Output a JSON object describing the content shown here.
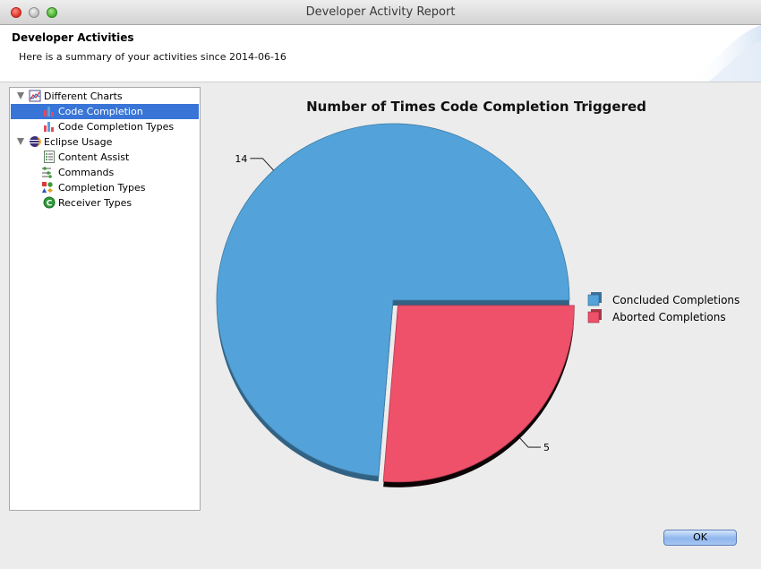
{
  "window": {
    "title": "Developer Activity Report"
  },
  "header": {
    "title": "Developer Activities",
    "subtitle": "Here is a summary of your activities since 2014-06-16"
  },
  "tree": {
    "items": [
      {
        "label": "Different Charts",
        "icon": "chart-group-icon",
        "level": 0,
        "expanded": true,
        "selected": false
      },
      {
        "label": "Code Completion",
        "icon": "bar-chart-icon",
        "level": 1,
        "selected": true
      },
      {
        "label": "Code Completion Types",
        "icon": "bar-chart-icon",
        "level": 1,
        "selected": false
      },
      {
        "label": "Eclipse Usage",
        "icon": "eclipse-icon",
        "level": 0,
        "expanded": true,
        "selected": false
      },
      {
        "label": "Content Assist",
        "icon": "list-icon",
        "level": 1,
        "selected": false
      },
      {
        "label": "Commands",
        "icon": "commands-icon",
        "level": 1,
        "selected": false
      },
      {
        "label": "Completion Types",
        "icon": "shapes-icon",
        "level": 1,
        "selected": false
      },
      {
        "label": "Receiver Types",
        "icon": "class-icon",
        "level": 1,
        "selected": false
      }
    ]
  },
  "chart_data": {
    "type": "pie",
    "title": "Number of Times Code Completion Triggered",
    "slices": [
      {
        "name": "Concluded Completions",
        "value": 14,
        "color": "#53a3da"
      },
      {
        "name": "Aborted Completions",
        "value": 5,
        "color": "#ef506a"
      }
    ],
    "legend_position": "right"
  },
  "buttons": {
    "ok_label": "OK"
  }
}
